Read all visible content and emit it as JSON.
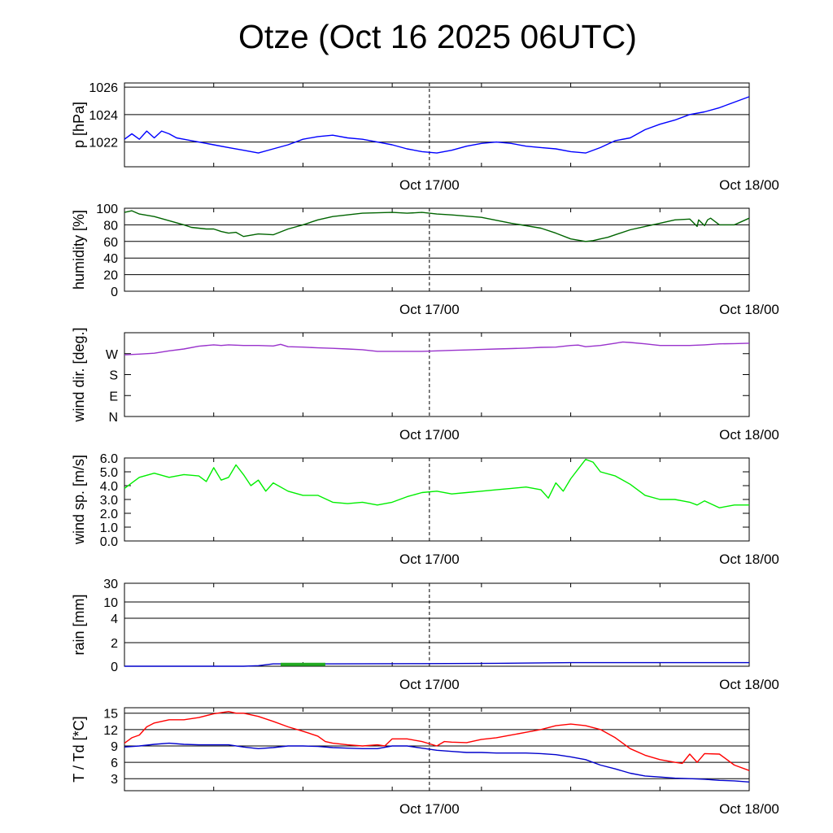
{
  "title": "Otze (Oct 16 2025 06UTC)",
  "x_ticks": [
    "Oct 17/00",
    "Oct 18/00"
  ],
  "chart_data": [
    {
      "type": "line",
      "id": "pressure",
      "ylabel": "p [hPa]",
      "ylim": [
        1020.2,
        1026.3
      ],
      "yticks": [
        1022,
        1024,
        1026
      ],
      "xlim": [
        0,
        42
      ],
      "grid": true,
      "series": [
        {
          "color": "#0000ff",
          "x": [
            0,
            0.5,
            1,
            1.5,
            2,
            2.5,
            3,
            3.5,
            4,
            4.5,
            5,
            5.5,
            6,
            7,
            8,
            9,
            10,
            11,
            12,
            13,
            14,
            15,
            16,
            17,
            18,
            19,
            20,
            21,
            22,
            23,
            24,
            25,
            26,
            27,
            28,
            29,
            30,
            31,
            32,
            33,
            34,
            35,
            36,
            37,
            38,
            39,
            40,
            41,
            42
          ],
          "y": [
            1022.2,
            1022.6,
            1022.2,
            1022.8,
            1022.3,
            1022.8,
            1022.6,
            1022.3,
            1022.2,
            1022.1,
            1022,
            1021.9,
            1021.8,
            1021.6,
            1021.4,
            1021.2,
            1021.5,
            1021.8,
            1022.2,
            1022.4,
            1022.5,
            1022.3,
            1022.2,
            1022,
            1021.8,
            1021.5,
            1021.3,
            1021.2,
            1021.4,
            1021.7,
            1021.9,
            1022,
            1021.9,
            1021.7,
            1021.6,
            1021.5,
            1021.3,
            1021.2,
            1021.6,
            1022.1,
            1022.3,
            1022.9,
            1023.3,
            1023.6,
            1024,
            1024.2,
            1024.5,
            1024.9,
            1025.3
          ]
        }
      ]
    },
    {
      "type": "line",
      "id": "humidity",
      "ylabel": "humidity [%]",
      "ylim": [
        0,
        100
      ],
      "yticks": [
        0,
        20,
        40,
        60,
        80,
        100
      ],
      "xlim": [
        0,
        42
      ],
      "grid": true,
      "series": [
        {
          "color": "#006400",
          "x": [
            0,
            0.5,
            1,
            2,
            3,
            4,
            4.5,
            5,
            5.5,
            6,
            6.5,
            7,
            7.5,
            8,
            9,
            10,
            11,
            12,
            13,
            14,
            16,
            18,
            19,
            20,
            21,
            22,
            24,
            26,
            28,
            29,
            30,
            31,
            31.5,
            32,
            32.5,
            33,
            34,
            35,
            36,
            37,
            38,
            38.5,
            38.6,
            39,
            39.2,
            39.4,
            40,
            41,
            41.5,
            42
          ],
          "y": [
            95,
            97,
            93,
            90,
            85,
            80,
            77,
            76,
            75,
            75,
            72,
            70,
            71,
            66,
            69,
            68,
            75,
            80,
            86,
            90,
            94,
            95,
            94,
            95,
            93,
            92,
            89,
            82,
            76,
            70,
            63,
            60,
            61,
            63,
            65,
            68,
            74,
            78,
            82,
            86,
            87,
            78,
            86,
            79,
            86,
            88,
            80,
            80,
            84,
            88
          ]
        }
      ]
    },
    {
      "type": "line",
      "id": "wind_direction",
      "ylabel": "wind dir. [deg.]",
      "ylim": [
        0,
        360
      ],
      "yticks": [
        0,
        90,
        180,
        270
      ],
      "ytick_labels": [
        "N",
        "E",
        "S",
        "W"
      ],
      "xlim": [
        0,
        42
      ],
      "grid": false,
      "series": [
        {
          "color": "#9932cc",
          "x": [
            0,
            1,
            2,
            3,
            4,
            5,
            6,
            6.5,
            7,
            8,
            9,
            10,
            10.5,
            11,
            12,
            13,
            14,
            15,
            16,
            17,
            18,
            19,
            20,
            21,
            22,
            23,
            24,
            25,
            26,
            27,
            28,
            29,
            30,
            30.5,
            31,
            32,
            33,
            33.5,
            34,
            35,
            36,
            37,
            38,
            39,
            40,
            41,
            42
          ],
          "y": [
            265,
            268,
            272,
            282,
            290,
            302,
            308,
            305,
            308,
            305,
            305,
            303,
            310,
            300,
            298,
            295,
            293,
            290,
            287,
            280,
            280,
            280,
            280,
            282,
            284,
            286,
            288,
            290,
            292,
            294,
            297,
            298,
            305,
            307,
            300,
            305,
            315,
            320,
            318,
            312,
            305,
            305,
            305,
            308,
            312,
            313,
            315
          ]
        }
      ]
    },
    {
      "type": "line",
      "id": "wind_speed",
      "ylabel": "wind sp. [m/s]",
      "ylim": [
        0,
        6.0
      ],
      "yticks": [
        0,
        1,
        2,
        3,
        4,
        5,
        6
      ],
      "ytick_labels": [
        "0.0",
        "1.0",
        "2.0",
        "3.0",
        "4.0",
        "5.0",
        "6.0"
      ],
      "xlim": [
        0,
        42
      ],
      "grid": false,
      "series": [
        {
          "color": "#00ee00",
          "x": [
            0,
            0.5,
            1,
            2,
            3,
            4,
            5,
            5.5,
            6,
            6.5,
            7,
            7.5,
            8,
            8.5,
            9,
            9.5,
            10,
            11,
            12,
            13,
            14,
            15,
            16,
            17,
            18,
            19,
            20,
            21,
            22,
            23,
            24,
            25,
            26,
            27,
            28,
            28.5,
            29,
            29.5,
            30,
            31,
            31.5,
            32,
            33,
            34,
            35,
            36,
            37,
            37.5,
            38,
            38.5,
            39,
            40,
            41,
            42
          ],
          "y": [
            3.8,
            4.2,
            4.6,
            4.9,
            4.6,
            4.8,
            4.7,
            4.3,
            5.3,
            4.4,
            4.6,
            5.5,
            4.8,
            4.0,
            4.4,
            3.6,
            4.2,
            3.6,
            3.3,
            3.3,
            2.8,
            2.7,
            2.8,
            2.6,
            2.8,
            3.2,
            3.5,
            3.6,
            3.4,
            3.5,
            3.6,
            3.7,
            3.8,
            3.9,
            3.7,
            3.1,
            4.2,
            3.6,
            4.5,
            5.9,
            5.7,
            5.0,
            4.7,
            4.1,
            3.3,
            3.0,
            3.0,
            2.9,
            2.8,
            2.6,
            2.9,
            2.4,
            2.6,
            2.6
          ]
        }
      ]
    },
    {
      "type": "area",
      "id": "rain",
      "ylabel": "rain [mm]",
      "ylim": [
        0,
        30
      ],
      "yticks": [
        0,
        2,
        4,
        10,
        30
      ],
      "ytick_labels": [
        "0",
        "2",
        "4",
        "10",
        "30"
      ],
      "xlim": [
        0,
        42
      ],
      "grid": true,
      "series": [
        {
          "color": "#0000cc",
          "x": [
            0,
            8,
            9,
            10,
            13,
            14,
            20,
            25,
            30,
            35,
            40,
            42
          ],
          "y": [
            0,
            0,
            0.05,
            0.2,
            0.2,
            0.2,
            0.22,
            0.25,
            0.3,
            0.3,
            0.3,
            0.3
          ]
        },
        {
          "color": "#22aa22",
          "x": [
            10.5,
            13.5
          ],
          "y": [
            0.15,
            0.15
          ]
        }
      ]
    },
    {
      "type": "line",
      "id": "temperature",
      "ylabel": "T / Td [*C]",
      "ylim": [
        0.8,
        16
      ],
      "yticks": [
        3,
        6,
        9,
        12,
        15
      ],
      "xlim": [
        0,
        42
      ],
      "grid": true,
      "series": [
        {
          "color": "#ff0000",
          "x": [
            0,
            0.5,
            1,
            1.5,
            2,
            3,
            4,
            5,
            6,
            7,
            7.5,
            8,
            9,
            10,
            11,
            12,
            13,
            13.5,
            14,
            15,
            16,
            17,
            17.5,
            18,
            19,
            20,
            21,
            21.5,
            22,
            23,
            24,
            25,
            26,
            27,
            28,
            29,
            30,
            31,
            32,
            33,
            34,
            35,
            36,
            37,
            37.5,
            38,
            38.5,
            39,
            40,
            41,
            42
          ],
          "y": [
            9.5,
            10.5,
            11,
            12.5,
            13.2,
            13.8,
            13.8,
            14.2,
            14.9,
            15.3,
            15,
            15,
            14.4,
            13.5,
            12.5,
            11.7,
            10.8,
            9.8,
            9.5,
            9.2,
            9,
            9.2,
            9,
            10.3,
            10.3,
            9.8,
            9,
            9.8,
            9.7,
            9.6,
            10.2,
            10.5,
            11,
            11.5,
            12,
            12.7,
            13,
            12.7,
            12,
            10.5,
            8.5,
            7.3,
            6.5,
            6,
            5.8,
            7.5,
            6,
            7.6,
            7.5,
            5.5,
            4.5
          ]
        },
        {
          "color": "#0000cc",
          "x": [
            0,
            1,
            2,
            3,
            4,
            5,
            6,
            7,
            8,
            9,
            10,
            11,
            12,
            13,
            14,
            15,
            16,
            17,
            18,
            19,
            20,
            21,
            22,
            23,
            24,
            25,
            26,
            27,
            28,
            29,
            30,
            31,
            32,
            33,
            34,
            35,
            36,
            37,
            38,
            39,
            40,
            41,
            42
          ],
          "y": [
            8.8,
            9,
            9.3,
            9.5,
            9.3,
            9.2,
            9.2,
            9.2,
            8.8,
            8.5,
            8.7,
            9,
            9,
            8.9,
            8.7,
            8.6,
            8.5,
            8.5,
            9,
            9,
            8.6,
            8.2,
            8,
            7.8,
            7.8,
            7.7,
            7.7,
            7.7,
            7.6,
            7.4,
            7,
            6.5,
            5.5,
            4.8,
            4,
            3.5,
            3.3,
            3.1,
            3,
            2.9,
            2.7,
            2.6,
            2.4
          ]
        }
      ]
    }
  ]
}
